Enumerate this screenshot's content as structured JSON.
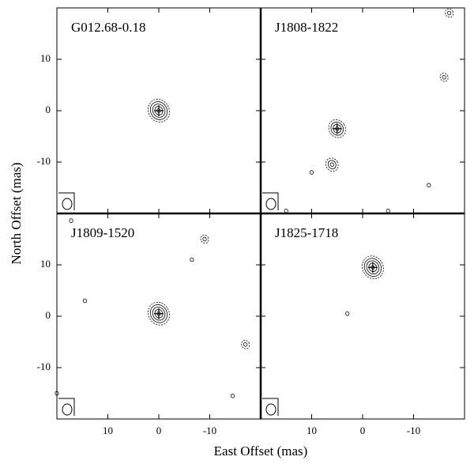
{
  "x_label": "East Offset (mas)",
  "y_label": "North Offset (mas)",
  "chart_data": [
    {
      "type": "contour",
      "title": "G012.68-0.18",
      "xlim": [
        20,
        -20
      ],
      "ylim": [
        -20,
        20
      ],
      "xticks": [
        10,
        0,
        -10
      ],
      "yticks": [
        10,
        0,
        -10
      ],
      "sources": [
        {
          "x": 0,
          "y": 0,
          "levels": 5
        }
      ]
    },
    {
      "type": "contour",
      "title": "J1808-1822",
      "xlim": [
        20,
        -20
      ],
      "ylim": [
        -20,
        20
      ],
      "xticks": [
        10,
        0,
        -10
      ],
      "yticks": [
        10,
        0,
        -10
      ],
      "sources": [
        {
          "x": 5,
          "y": -3.5,
          "levels": 4
        },
        {
          "x": 6,
          "y": -10.5,
          "levels": 3
        },
        {
          "x": 10,
          "y": -12,
          "levels": 1
        },
        {
          "x": -13,
          "y": -14.5,
          "levels": 1
        },
        {
          "x": -16,
          "y": 6.5,
          "levels": 2
        },
        {
          "x": -17,
          "y": 19,
          "levels": 2
        },
        {
          "x": 15,
          "y": -19.5,
          "levels": 1
        },
        {
          "x": -5,
          "y": -19.5,
          "levels": 1
        }
      ]
    },
    {
      "type": "contour",
      "title": "J1809-1520",
      "xlim": [
        20,
        -20
      ],
      "ylim": [
        -20,
        20
      ],
      "xticks": [
        10,
        0,
        -10
      ],
      "yticks": [
        10,
        0,
        -10
      ],
      "sources": [
        {
          "x": 0,
          "y": 0.5,
          "levels": 5
        },
        {
          "x": -9,
          "y": 15,
          "levels": 2
        },
        {
          "x": -6.5,
          "y": 11,
          "levels": 1
        },
        {
          "x": -17,
          "y": -5.5,
          "levels": 2
        },
        {
          "x": 14.5,
          "y": 3,
          "levels": 1
        },
        {
          "x": 17.2,
          "y": 18.6,
          "levels": 1
        },
        {
          "x": -14.5,
          "y": -15.5,
          "levels": 1
        },
        {
          "x": 20,
          "y": -15,
          "levels": 1
        }
      ]
    },
    {
      "type": "contour",
      "title": "J1825-1718",
      "xlim": [
        20,
        -20
      ],
      "ylim": [
        -20,
        20
      ],
      "xticks": [
        10,
        0,
        -10
      ],
      "yticks": [
        10,
        0,
        -10
      ],
      "sources": [
        {
          "x": -2,
          "y": 9.5,
          "levels": 5
        },
        {
          "x": 3,
          "y": 0.5,
          "levels": 1
        }
      ]
    }
  ]
}
